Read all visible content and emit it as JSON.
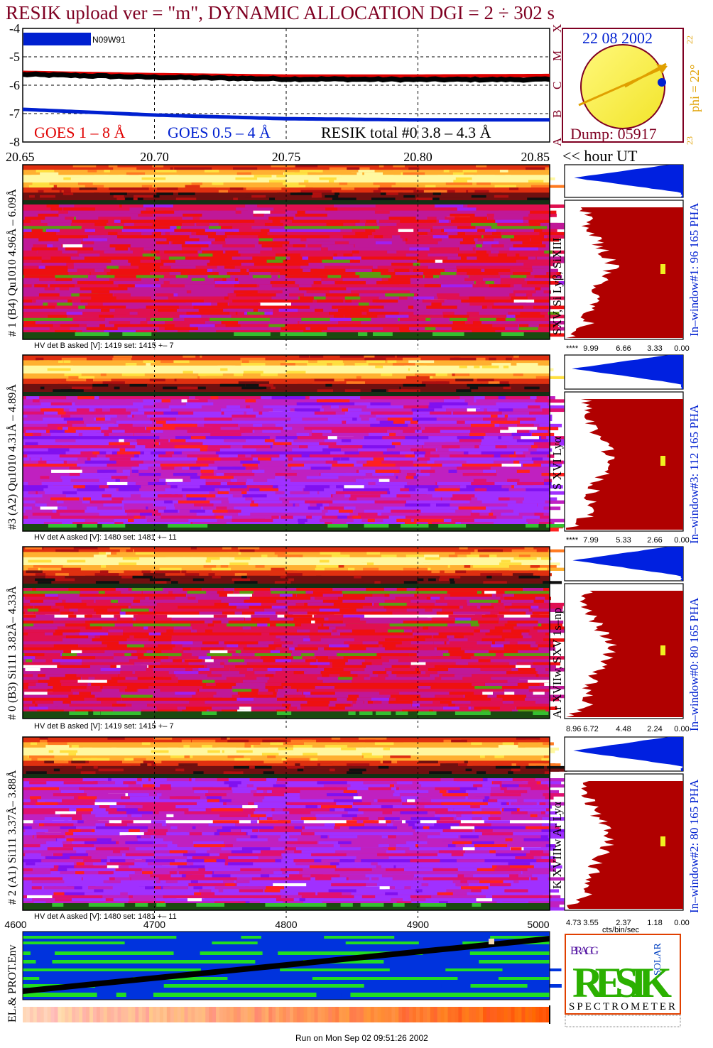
{
  "header": {
    "title": "RESIK upload ver = \"m\", DYNAMIC ALLOCATION  DGI =   2 ÷ 302 s",
    "date": "22 08 2002",
    "dump": "Dump: 05917",
    "phi": "phi = 22°",
    "phi_top": "22",
    "phi_bottom": "23",
    "goes_class_letters": [
      "X",
      "M",
      "C",
      "B",
      "A"
    ],
    "sunspot_label": "N09W91"
  },
  "colors": {
    "title": "#7f0022",
    "goes_long": "#e00000",
    "goes_short": "#0020d0",
    "resik_total": "#000000",
    "sun_disk": "#f8f040",
    "sun_outline": "#7f0022",
    "orbit_line": "#e0a000",
    "date": "#0020d0",
    "phi": "#e0a000",
    "pha_blue": "#0020e0",
    "pha_red": "#b00000",
    "env_blue": "#0033dd",
    "env_green": "#22dd22",
    "marker_yellow": "#f0f020"
  },
  "chart_data": [
    {
      "type": "line",
      "title": "",
      "xlabel": "<< hour UT",
      "ylabel": "",
      "x_ticks": [
        "20.65",
        "20.70",
        "20.75",
        "20.80",
        "20.85"
      ],
      "xlim": [
        20.65,
        20.85
      ],
      "y_ticks": [
        "-4",
        "-5",
        "-6",
        "-7",
        "-8"
      ],
      "ylim": [
        -8,
        -4
      ],
      "grid": true,
      "legend_placement": "bottom",
      "series": [
        {
          "name": "GOES 1 – 8 Å",
          "x": [
            20.65,
            20.7,
            20.75,
            20.8,
            20.85
          ],
          "values": [
            -5.55,
            -5.63,
            -5.68,
            -5.68,
            -5.66
          ]
        },
        {
          "name": "GOES 0.5 – 4 Å",
          "x": [
            20.65,
            20.7,
            20.75,
            20.8,
            20.85
          ],
          "values": [
            -6.85,
            -7.05,
            -7.18,
            -7.22,
            -7.22
          ]
        },
        {
          "name": "RESIK total #0  3.8 – 4.3 Å",
          "x": [
            20.65,
            20.7,
            20.75,
            20.8,
            20.85
          ],
          "values": [
            -5.62,
            -5.72,
            -5.78,
            -5.8,
            -5.8
          ]
        }
      ]
    },
    {
      "type": "heatmap",
      "panels": [
        {
          "label": "# 1 (B4) Qu1010 4.96Å – 6.09Å",
          "lines": "SXV, Si Lyβ, SiXIII",
          "window": "In–window#1:   96 165  PHA",
          "hv": "HV det B asked [V]:  1419 set:  1415  +–    7",
          "pha_ticks": [
            "****",
            "9.99",
            "6.66",
            "3.33",
            "0.00"
          ]
        },
        {
          "label": "#3 (A2) Qu1010  4.31Å – 4.89Å",
          "lines": "S XVI Lyα",
          "window": "In–window#3:  112 165  PHA",
          "hv": "HV det A asked [V]:  1480 set:  1481  +–    11",
          "pha_ticks": [
            "****",
            "7.99",
            "5.33",
            "2.66",
            "0.00"
          ]
        },
        {
          "label": "# 0 (B3) Si111  3.82Å– 4.33Å",
          "lines": "Ar XVIIw, SXV 1s–np",
          "window": "In–window#0:   80 165  PHA",
          "hv": "HV det B asked [V]:  1419 set:  1415  +–    7",
          "pha_ticks": [
            "8.96",
            "6.72",
            "4.48",
            "2.24",
            "0.00"
          ]
        },
        {
          "label": "# 2 (A1) Si111  3.37Å– 3.88Å",
          "lines": "K XVIIIw  Ar Lyα",
          "window": "In–window#2:   80 165  PHA",
          "hv": "HV det A asked [V]:  1480 set:  1481  +–    11",
          "pha_ticks": [
            "4.73",
            "3.55",
            "2.37",
            "1.18",
            "0.00"
          ]
        }
      ],
      "pha_xlabel": "cts/bin/sec"
    },
    {
      "type": "heatmap",
      "title": "",
      "ylabel": "EL.& PROT.Env",
      "x_ticks": [
        "4600",
        "4700",
        "4800",
        "4900",
        "5000"
      ],
      "xlim": [
        4600,
        5000
      ]
    }
  ],
  "logo": {
    "main": "RESIK",
    "bragg": "BRAGG",
    "solar": "SOLAR",
    "caption": "SPECTROMETER"
  },
  "footer": {
    "run": "Run on Mon Sep 02 09:51:26 2002"
  }
}
